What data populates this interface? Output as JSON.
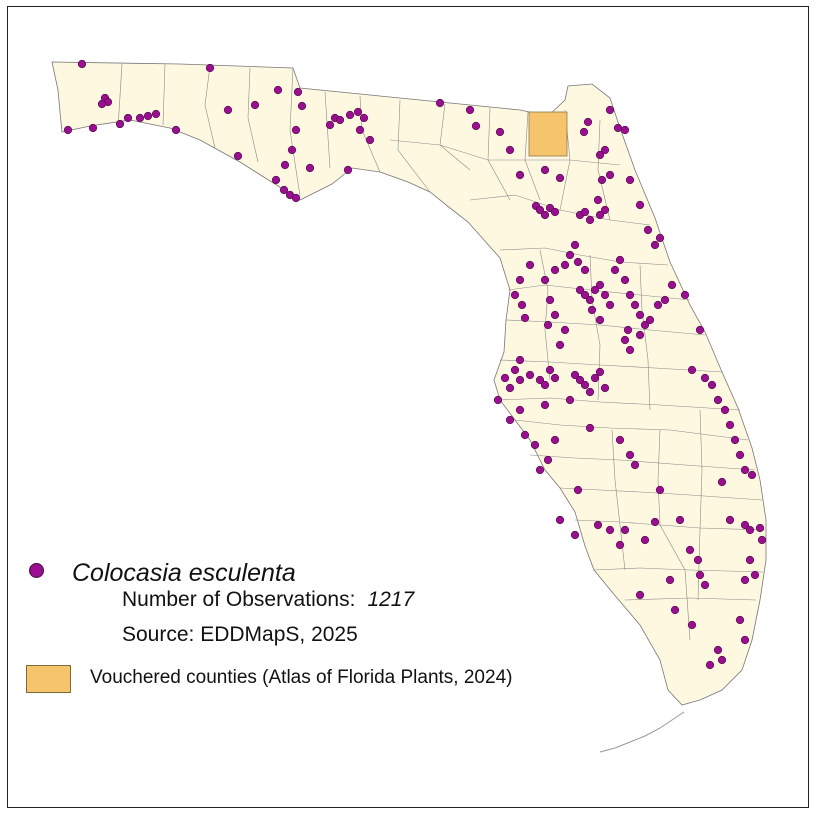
{
  "legend": {
    "species_name": "Colocasia esculenta",
    "observations_label": "Number of Observations:",
    "observations_count": "1217",
    "source": "Source: EDDMapS, 2025",
    "vouchered_label": "Vouchered counties (Atlas of Florida Plants, 2024)"
  },
  "colors": {
    "land": "#fef8e1",
    "county_border": "#8a8a8a",
    "vouchered_county": "#f6c46a",
    "observation_dot": "#990f8f",
    "observation_outline": "#4a1046"
  },
  "vouchered_counties_count": 1
}
